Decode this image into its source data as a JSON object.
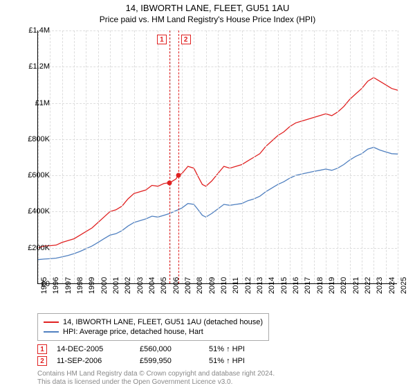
{
  "title": "14, IBWORTH LANE, FLEET, GU51 1AU",
  "subtitle": "Price paid vs. HM Land Registry's House Price Index (HPI)",
  "chart": {
    "type": "line",
    "background_color": "#ffffff",
    "grid_color": "#dddddd",
    "axis_color": "#000000",
    "x": {
      "min": 1995,
      "max": 2025,
      "ticks": [
        1995,
        1996,
        1997,
        1998,
        1999,
        2000,
        2001,
        2002,
        2003,
        2004,
        2005,
        2006,
        2007,
        2008,
        2009,
        2010,
        2011,
        2012,
        2013,
        2014,
        2015,
        2016,
        2017,
        2018,
        2019,
        2020,
        2021,
        2022,
        2023,
        2024,
        2025
      ]
    },
    "y": {
      "min": 0,
      "max": 1400000,
      "ticks": [
        0,
        200000,
        400000,
        600000,
        800000,
        1000000,
        1200000,
        1400000
      ],
      "labels": [
        "£0",
        "£200K",
        "£400K",
        "£600K",
        "£800K",
        "£1M",
        "£1.2M",
        "£1.4M"
      ]
    },
    "series": [
      {
        "name": "price_paid",
        "color": "#e02020",
        "width": 1.3,
        "data": [
          [
            1995,
            200000
          ],
          [
            1995.5,
            210000
          ],
          [
            1996,
            212000
          ],
          [
            1996.5,
            215000
          ],
          [
            1997,
            230000
          ],
          [
            1997.5,
            240000
          ],
          [
            1998,
            250000
          ],
          [
            1998.5,
            270000
          ],
          [
            1999,
            290000
          ],
          [
            1999.5,
            310000
          ],
          [
            2000,
            340000
          ],
          [
            2000.5,
            370000
          ],
          [
            2001,
            400000
          ],
          [
            2001.5,
            410000
          ],
          [
            2002,
            430000
          ],
          [
            2002.5,
            470000
          ],
          [
            2003,
            500000
          ],
          [
            2003.5,
            510000
          ],
          [
            2004,
            520000
          ],
          [
            2004.5,
            545000
          ],
          [
            2005,
            540000
          ],
          [
            2005.5,
            555000
          ],
          [
            2005.958,
            560000
          ],
          [
            2006,
            560000
          ],
          [
            2006.5,
            580000
          ],
          [
            2006.694,
            599950
          ],
          [
            2007,
            610000
          ],
          [
            2007.5,
            650000
          ],
          [
            2008,
            640000
          ],
          [
            2008.3,
            600000
          ],
          [
            2008.7,
            550000
          ],
          [
            2009,
            540000
          ],
          [
            2009.5,
            570000
          ],
          [
            2010,
            610000
          ],
          [
            2010.5,
            650000
          ],
          [
            2011,
            640000
          ],
          [
            2011.5,
            650000
          ],
          [
            2012,
            660000
          ],
          [
            2012.5,
            680000
          ],
          [
            2013,
            700000
          ],
          [
            2013.5,
            720000
          ],
          [
            2014,
            760000
          ],
          [
            2014.5,
            790000
          ],
          [
            2015,
            820000
          ],
          [
            2015.5,
            840000
          ],
          [
            2016,
            870000
          ],
          [
            2016.5,
            890000
          ],
          [
            2017,
            900000
          ],
          [
            2017.5,
            910000
          ],
          [
            2018,
            920000
          ],
          [
            2018.5,
            930000
          ],
          [
            2019,
            940000
          ],
          [
            2019.5,
            930000
          ],
          [
            2020,
            950000
          ],
          [
            2020.5,
            980000
          ],
          [
            2021,
            1020000
          ],
          [
            2021.5,
            1050000
          ],
          [
            2022,
            1080000
          ],
          [
            2022.5,
            1120000
          ],
          [
            2023,
            1140000
          ],
          [
            2023.5,
            1120000
          ],
          [
            2024,
            1100000
          ],
          [
            2024.5,
            1080000
          ],
          [
            2025,
            1070000
          ]
        ]
      },
      {
        "name": "hpi",
        "color": "#5080c0",
        "width": 1.3,
        "data": [
          [
            1995,
            135000
          ],
          [
            1995.5,
            138000
          ],
          [
            1996,
            140000
          ],
          [
            1996.5,
            143000
          ],
          [
            1997,
            150000
          ],
          [
            1997.5,
            158000
          ],
          [
            1998,
            168000
          ],
          [
            1998.5,
            180000
          ],
          [
            1999,
            195000
          ],
          [
            1999.5,
            210000
          ],
          [
            2000,
            230000
          ],
          [
            2000.5,
            250000
          ],
          [
            2001,
            270000
          ],
          [
            2001.5,
            278000
          ],
          [
            2002,
            295000
          ],
          [
            2002.5,
            320000
          ],
          [
            2003,
            340000
          ],
          [
            2003.5,
            350000
          ],
          [
            2004,
            360000
          ],
          [
            2004.5,
            375000
          ],
          [
            2005,
            370000
          ],
          [
            2005.5,
            380000
          ],
          [
            2006,
            390000
          ],
          [
            2006.5,
            405000
          ],
          [
            2007,
            420000
          ],
          [
            2007.5,
            445000
          ],
          [
            2008,
            440000
          ],
          [
            2008.3,
            415000
          ],
          [
            2008.7,
            380000
          ],
          [
            2009,
            370000
          ],
          [
            2009.5,
            390000
          ],
          [
            2010,
            415000
          ],
          [
            2010.5,
            440000
          ],
          [
            2011,
            435000
          ],
          [
            2011.5,
            440000
          ],
          [
            2012,
            445000
          ],
          [
            2012.5,
            460000
          ],
          [
            2013,
            470000
          ],
          [
            2013.5,
            485000
          ],
          [
            2014,
            510000
          ],
          [
            2014.5,
            530000
          ],
          [
            2015,
            550000
          ],
          [
            2015.5,
            565000
          ],
          [
            2016,
            585000
          ],
          [
            2016.5,
            600000
          ],
          [
            2017,
            608000
          ],
          [
            2017.5,
            615000
          ],
          [
            2018,
            622000
          ],
          [
            2018.5,
            628000
          ],
          [
            2019,
            635000
          ],
          [
            2019.5,
            628000
          ],
          [
            2020,
            640000
          ],
          [
            2020.5,
            660000
          ],
          [
            2021,
            685000
          ],
          [
            2021.5,
            705000
          ],
          [
            2022,
            720000
          ],
          [
            2022.5,
            745000
          ],
          [
            2023,
            755000
          ],
          [
            2023.5,
            740000
          ],
          [
            2024,
            730000
          ],
          [
            2024.5,
            720000
          ],
          [
            2025,
            718000
          ]
        ]
      }
    ],
    "markers": [
      {
        "id": "1",
        "x": 2005.958,
        "y": 560000,
        "color": "#e02020"
      },
      {
        "id": "2",
        "x": 2006.694,
        "y": 599950,
        "color": "#e02020"
      }
    ]
  },
  "legend": {
    "items": [
      {
        "color": "#e02020",
        "label": "14, IBWORTH LANE, FLEET, GU51 1AU (detached house)"
      },
      {
        "color": "#5080c0",
        "label": "HPI: Average price, detached house, Hart"
      }
    ]
  },
  "footer_rows": [
    {
      "id": "1",
      "color": "#e02020",
      "date": "14-DEC-2005",
      "price": "£560,000",
      "pct": "51% ↑ HPI"
    },
    {
      "id": "2",
      "color": "#e02020",
      "date": "11-SEP-2006",
      "price": "£599,950",
      "pct": "51% ↑ HPI"
    }
  ],
  "license": {
    "line1": "Contains HM Land Registry data © Crown copyright and database right 2024.",
    "line2": "This data is licensed under the Open Government Licence v3.0."
  }
}
